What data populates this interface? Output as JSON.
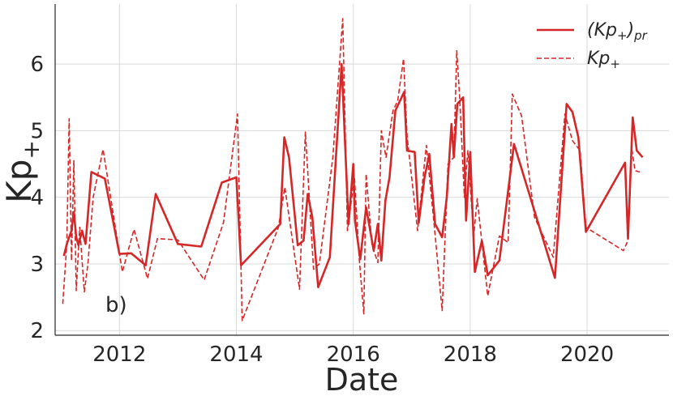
{
  "chart_data": {
    "type": "line",
    "xlabel": "Date",
    "ylabel_base": "Kp",
    "ylabel_sub": "+",
    "annotation": "b)",
    "xlim": [
      2010.9,
      2021.4
    ],
    "ylim": [
      1.93,
      6.9
    ],
    "x_ticks": [
      2012,
      2014,
      2016,
      2018,
      2020
    ],
    "y_ticks": [
      2,
      3,
      4,
      5,
      6
    ],
    "grid": true,
    "legend_position": "top-right",
    "color": "#d62728",
    "legend": {
      "pr_base": "(Kp",
      "pr_sub1": "+",
      "pr_mid": ")",
      "pr_sub2": "pr",
      "kp_base": "Kp",
      "kp_sub": "+"
    },
    "series": [
      {
        "key": "predicted",
        "style": "solid",
        "points": [
          [
            2011.05,
            3.12
          ],
          [
            2011.1,
            3.3
          ],
          [
            2011.18,
            3.5
          ],
          [
            2011.22,
            3.78
          ],
          [
            2011.26,
            3.4
          ],
          [
            2011.3,
            3.28
          ],
          [
            2011.36,
            3.5
          ],
          [
            2011.42,
            3.3
          ],
          [
            2011.52,
            4.38
          ],
          [
            2011.75,
            4.28
          ],
          [
            2012.0,
            3.15
          ],
          [
            2012.2,
            3.16
          ],
          [
            2012.45,
            2.98
          ],
          [
            2012.62,
            4.05
          ],
          [
            2013.0,
            3.3
          ],
          [
            2013.4,
            3.26
          ],
          [
            2013.75,
            4.22
          ],
          [
            2014.0,
            4.3
          ],
          [
            2014.08,
            2.98
          ],
          [
            2014.75,
            3.6
          ],
          [
            2014.82,
            4.9
          ],
          [
            2014.9,
            4.6
          ],
          [
            2015.05,
            3.28
          ],
          [
            2015.15,
            3.35
          ],
          [
            2015.22,
            4.05
          ],
          [
            2015.3,
            3.7
          ],
          [
            2015.4,
            2.65
          ],
          [
            2015.6,
            3.1
          ],
          [
            2015.8,
            6.0
          ],
          [
            2015.92,
            3.6
          ],
          [
            2016.0,
            4.5
          ],
          [
            2016.03,
            3.65
          ],
          [
            2016.12,
            3.07
          ],
          [
            2016.22,
            3.85
          ],
          [
            2016.35,
            3.2
          ],
          [
            2016.42,
            3.6
          ],
          [
            2016.48,
            3.05
          ],
          [
            2016.55,
            3.95
          ],
          [
            2016.62,
            4.3
          ],
          [
            2016.72,
            5.3
          ],
          [
            2016.8,
            5.45
          ],
          [
            2016.87,
            5.58
          ],
          [
            2016.92,
            4.7
          ],
          [
            2017.05,
            4.68
          ],
          [
            2017.12,
            3.62
          ],
          [
            2017.22,
            4.3
          ],
          [
            2017.3,
            4.65
          ],
          [
            2017.4,
            3.6
          ],
          [
            2017.52,
            3.4
          ],
          [
            2017.6,
            4.0
          ],
          [
            2017.68,
            5.1
          ],
          [
            2017.72,
            4.6
          ],
          [
            2017.78,
            5.4
          ],
          [
            2017.88,
            5.5
          ],
          [
            2017.93,
            3.65
          ],
          [
            2018.0,
            4.68
          ],
          [
            2018.08,
            2.88
          ],
          [
            2018.2,
            3.35
          ],
          [
            2018.3,
            2.83
          ],
          [
            2018.5,
            3.05
          ],
          [
            2018.75,
            4.8
          ],
          [
            2019.45,
            2.79
          ],
          [
            2019.65,
            5.4
          ],
          [
            2019.75,
            5.28
          ],
          [
            2019.85,
            4.9
          ],
          [
            2019.98,
            3.48
          ],
          [
            2020.65,
            4.52
          ],
          [
            2020.7,
            3.38
          ],
          [
            2020.78,
            5.2
          ],
          [
            2020.85,
            4.7
          ],
          [
            2020.95,
            4.6
          ]
        ]
      },
      {
        "key": "observed",
        "style": "dashed",
        "points": [
          [
            2011.03,
            2.4
          ],
          [
            2011.1,
            3.3
          ],
          [
            2011.14,
            5.18
          ],
          [
            2011.18,
            3.05
          ],
          [
            2011.22,
            4.55
          ],
          [
            2011.26,
            2.6
          ],
          [
            2011.32,
            3.55
          ],
          [
            2011.4,
            2.58
          ],
          [
            2011.46,
            3.0
          ],
          [
            2011.55,
            4.0
          ],
          [
            2011.72,
            4.72
          ],
          [
            2012.05,
            2.88
          ],
          [
            2012.25,
            3.52
          ],
          [
            2012.48,
            2.78
          ],
          [
            2012.65,
            3.38
          ],
          [
            2013.0,
            3.36
          ],
          [
            2013.45,
            2.76
          ],
          [
            2013.78,
            3.62
          ],
          [
            2014.02,
            5.25
          ],
          [
            2014.1,
            2.15
          ],
          [
            2014.72,
            3.55
          ],
          [
            2014.83,
            4.15
          ],
          [
            2014.92,
            3.6
          ],
          [
            2015.08,
            2.62
          ],
          [
            2015.18,
            4.98
          ],
          [
            2015.32,
            2.92
          ],
          [
            2015.42,
            3.0
          ],
          [
            2015.65,
            4.6
          ],
          [
            2015.82,
            6.68
          ],
          [
            2015.9,
            3.5
          ],
          [
            2016.02,
            4.3
          ],
          [
            2016.1,
            3.1
          ],
          [
            2016.18,
            2.25
          ],
          [
            2016.22,
            4.35
          ],
          [
            2016.32,
            3.28
          ],
          [
            2016.42,
            3.02
          ],
          [
            2016.48,
            5.0
          ],
          [
            2016.56,
            4.6
          ],
          [
            2016.68,
            5.3
          ],
          [
            2016.76,
            5.45
          ],
          [
            2016.86,
            6.08
          ],
          [
            2016.92,
            4.92
          ],
          [
            2017.1,
            3.5
          ],
          [
            2017.25,
            4.78
          ],
          [
            2017.38,
            3.62
          ],
          [
            2017.52,
            2.3
          ],
          [
            2017.62,
            4.5
          ],
          [
            2017.72,
            4.6
          ],
          [
            2017.77,
            6.2
          ],
          [
            2017.82,
            5.5
          ],
          [
            2017.9,
            4.0
          ],
          [
            2017.96,
            4.7
          ],
          [
            2018.06,
            3.42
          ],
          [
            2018.12,
            3.98
          ],
          [
            2018.3,
            2.52
          ],
          [
            2018.5,
            3.42
          ],
          [
            2018.65,
            3.32
          ],
          [
            2018.72,
            5.55
          ],
          [
            2018.88,
            5.22
          ],
          [
            2019.1,
            3.7
          ],
          [
            2019.42,
            3.1
          ],
          [
            2019.62,
            5.25
          ],
          [
            2019.75,
            4.85
          ],
          [
            2019.88,
            4.7
          ],
          [
            2019.98,
            3.55
          ],
          [
            2020.62,
            3.2
          ],
          [
            2020.7,
            3.35
          ],
          [
            2020.76,
            4.75
          ],
          [
            2020.82,
            4.4
          ],
          [
            2020.9,
            4.38
          ]
        ]
      }
    ]
  }
}
